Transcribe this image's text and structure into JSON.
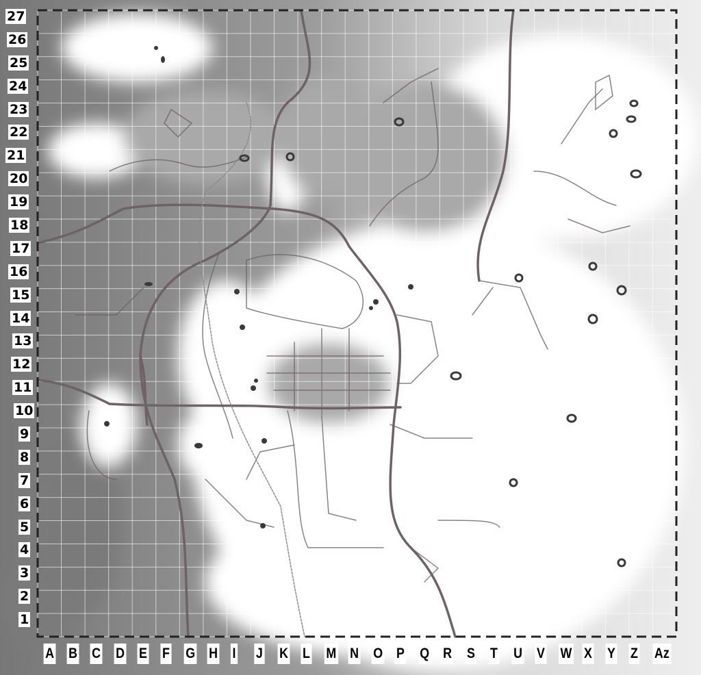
{
  "map": {
    "columns": [
      "A",
      "B",
      "C",
      "D",
      "E",
      "F",
      "G",
      "H",
      "I",
      "J",
      "K",
      "L",
      "M",
      "N",
      "O",
      "P",
      "Q",
      "R",
      "S",
      "T",
      "U",
      "V",
      "W",
      "X",
      "Y",
      "Z",
      "Az"
    ],
    "rows": [
      "27",
      "26",
      "25",
      "24",
      "23",
      "22",
      "21",
      "20",
      "19",
      "18",
      "17",
      "16",
      "15",
      "14",
      "13",
      "12",
      "11",
      "10",
      "9",
      "8",
      "7",
      "6",
      "5",
      "4",
      "3",
      "2",
      "1"
    ],
    "colors": {
      "terrain_dark": "#7a7a7a",
      "terrain_mid": "#a9a9a9",
      "terrain_light": "#cfcfcf",
      "open": "#ffffff",
      "road": "#6e6266",
      "marker": "#3a3a3a",
      "grid": "#ffffff"
    },
    "marker_icon": "location-ring-icon"
  }
}
